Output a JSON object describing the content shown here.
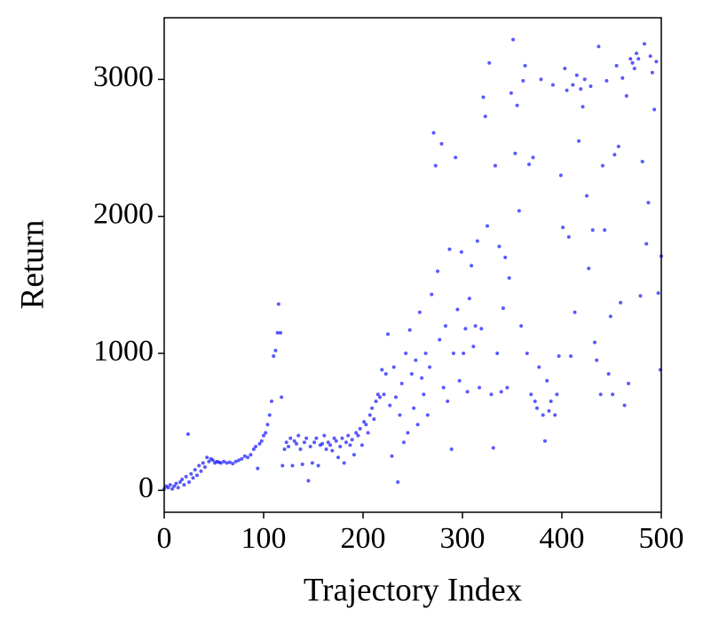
{
  "chart_data": {
    "type": "scatter",
    "xlabel": "Trajectory Index",
    "ylabel": "Return",
    "color": "#0000ff",
    "xlim": [
      0,
      500
    ],
    "ylim": [
      -160,
      3450
    ],
    "xticks": [
      0,
      100,
      200,
      300,
      400,
      500
    ],
    "yticks": [
      0,
      1000,
      2000,
      3000
    ],
    "x": [
      0,
      2,
      4,
      6,
      8,
      10,
      12,
      14,
      16,
      18,
      20,
      22,
      24,
      25,
      27,
      29,
      31,
      33,
      35,
      37,
      39,
      41,
      43,
      45,
      47,
      49,
      51,
      53,
      55,
      57,
      60,
      63,
      66,
      69,
      72,
      75,
      78,
      81,
      84,
      87,
      90,
      92,
      94,
      96,
      98,
      100,
      102,
      104,
      106,
      108,
      110,
      112,
      114,
      115,
      117,
      118,
      119,
      121,
      123,
      125,
      127,
      129,
      131,
      133,
      135,
      137,
      139,
      141,
      143,
      145,
      147,
      149,
      151,
      153,
      155,
      157,
      159,
      161,
      163,
      165,
      167,
      169,
      171,
      173,
      175,
      177,
      179,
      181,
      183,
      185,
      187,
      189,
      191,
      193,
      195,
      197,
      199,
      201,
      203,
      205,
      207,
      209,
      211,
      213,
      215,
      217,
      219,
      221,
      223,
      225,
      227,
      229,
      231,
      233,
      235,
      237,
      239,
      241,
      243,
      245,
      247,
      249,
      251,
      253,
      255,
      257,
      259,
      261,
      263,
      265,
      267,
      269,
      271,
      273,
      275,
      277,
      279,
      281,
      283,
      285,
      287,
      289,
      291,
      293,
      295,
      297,
      299,
      301,
      303,
      305,
      307,
      309,
      311,
      313,
      315,
      317,
      319,
      321,
      323,
      325,
      327,
      329,
      331,
      333,
      335,
      337,
      339,
      341,
      343,
      345,
      347,
      349,
      351,
      353,
      355,
      357,
      359,
      361,
      363,
      365,
      367,
      369,
      371,
      373,
      375,
      377,
      379,
      381,
      383,
      385,
      387,
      389,
      391,
      393,
      395,
      397,
      399,
      401,
      403,
      405,
      407,
      409,
      411,
      413,
      415,
      417,
      419,
      421,
      423,
      425,
      427,
      429,
      431,
      433,
      435,
      437,
      439,
      441,
      443,
      445,
      447,
      449,
      451,
      453,
      455,
      457,
      459,
      461,
      463,
      465,
      467,
      469,
      471,
      473,
      475,
      477,
      479,
      481,
      483,
      485,
      487,
      489,
      491,
      493,
      495,
      497,
      499,
      500
    ],
    "values": [
      10,
      30,
      20,
      40,
      10,
      30,
      50,
      20,
      60,
      80,
      40,
      100,
      410,
      60,
      120,
      90,
      150,
      110,
      180,
      140,
      200,
      170,
      240,
      210,
      230,
      220,
      200,
      210,
      205,
      200,
      210,
      200,
      205,
      195,
      210,
      220,
      230,
      250,
      240,
      260,
      300,
      320,
      160,
      340,
      360,
      400,
      420,
      480,
      550,
      650,
      980,
      1020,
      1150,
      1360,
      1150,
      680,
      180,
      300,
      350,
      320,
      380,
      180,
      360,
      340,
      400,
      300,
      190,
      350,
      380,
      70,
      320,
      200,
      350,
      380,
      180,
      330,
      340,
      400,
      300,
      350,
      330,
      290,
      380,
      360,
      240,
      320,
      380,
      200,
      350,
      400,
      330,
      370,
      260,
      420,
      400,
      450,
      330,
      500,
      480,
      420,
      550,
      600,
      520,
      650,
      700,
      680,
      880,
      700,
      850,
      1140,
      620,
      250,
      900,
      680,
      60,
      550,
      780,
      350,
      1000,
      420,
      1170,
      850,
      600,
      950,
      480,
      1300,
      820,
      700,
      1000,
      550,
      900,
      1430,
      2610,
      2370,
      1600,
      1100,
      2530,
      750,
      1200,
      650,
      1760,
      300,
      1000,
      2430,
      1320,
      800,
      1740,
      1000,
      1180,
      720,
      1400,
      1640,
      1050,
      1200,
      1820,
      750,
      1180,
      2870,
      2730,
      1930,
      3120,
      700,
      310,
      2370,
      1000,
      1780,
      720,
      1330,
      1700,
      750,
      1550,
      2900,
      3290,
      2460,
      2810,
      2040,
      1200,
      2990,
      3100,
      1000,
      2380,
      700,
      2430,
      650,
      600,
      900,
      3000,
      550,
      360,
      800,
      580,
      650,
      2960,
      550,
      700,
      980,
      2300,
      1920,
      3080,
      2920,
      1850,
      980,
      2960,
      1300,
      3030,
      2550,
      2930,
      2800,
      3000,
      2150,
      1620,
      2950,
      1900,
      1080,
      950,
      3240,
      700,
      2370,
      1900,
      2990,
      850,
      1270,
      700,
      2450,
      3100,
      2510,
      1370,
      3010,
      620,
      2880,
      780,
      3150,
      3120,
      3080,
      3190,
      3150,
      1420,
      2400,
      3260,
      1800,
      2100,
      3170,
      3050,
      2780,
      3130,
      1440,
      880,
      1710
    ]
  }
}
